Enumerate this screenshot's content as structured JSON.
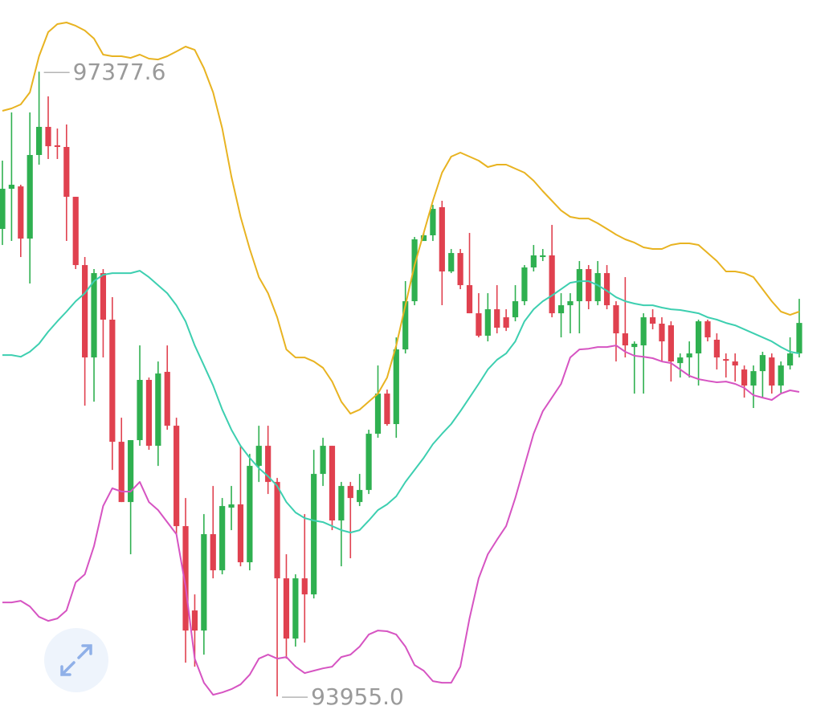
{
  "chart_data": {
    "type": "candlestick",
    "ylim": [
      93815,
      97770
    ],
    "up_color": "#2fb050",
    "down_color": "#e0414f",
    "open": [
      96516,
      96736,
      96749,
      96463,
      96921,
      97075,
      96974,
      96965,
      96692,
      96318,
      95812,
      96274,
      96019,
      95350,
      95020,
      95359,
      95689,
      95328,
      95733,
      95438,
      94888,
      94426,
      94316,
      94844,
      94646,
      94989,
      95007,
      94690,
      95218,
      95328,
      95130,
      94602,
      94272,
      94602,
      94514,
      95174,
      95328,
      94919,
      95108,
      95020,
      95086,
      95394,
      95614,
      95447,
      95856,
      96120,
      96450,
      96481,
      96635,
      96283,
      96384,
      96208,
      96054,
      95931,
      96076,
      96032,
      96032,
      96120,
      96305,
      96362,
      96371,
      96054,
      96098,
      96120,
      96296,
      96120,
      96274,
      96098,
      95944,
      95869,
      95878,
      96032,
      95997,
      95988,
      95781,
      95812,
      95834,
      96010,
      95909,
      95803,
      95790,
      95746,
      95658,
      95737,
      95812,
      95658,
      95768,
      95834
    ],
    "high": [
      96890,
      97154,
      96758,
      97154,
      97377.6,
      97242,
      97066,
      97088,
      96692,
      96362,
      96296,
      96296,
      96142,
      95482,
      95359,
      95878,
      95702,
      95790,
      95878,
      95482,
      95042,
      94514,
      94954,
      95108,
      95042,
      95108,
      95328,
      95284,
      95438,
      95438,
      95152,
      94734,
      94624,
      94954,
      95306,
      95372,
      95328,
      95130,
      95130,
      95174,
      95416,
      95768,
      95636,
      95922,
      96230,
      96472,
      96494,
      96648,
      96670,
      96406,
      96406,
      96494,
      96164,
      96164,
      96208,
      96076,
      96208,
      96318,
      96428,
      96406,
      96538,
      96164,
      96164,
      96340,
      96318,
      96340,
      96318,
      96120,
      96252,
      95900,
      96054,
      96076,
      96032,
      96010,
      95834,
      95900,
      96019,
      96019,
      95944,
      95834,
      95834,
      95768,
      95768,
      95843,
      95834,
      95790,
      95922,
      96133
    ],
    "low": [
      96428,
      96450,
      96362,
      96217,
      96868,
      96899,
      96899,
      96450,
      96296,
      95548,
      95570,
      95812,
      95196,
      95020,
      94734,
      95328,
      95306,
      95218,
      95416,
      94844,
      94140,
      94118,
      94184,
      94602,
      94624,
      94866,
      94668,
      94646,
      95130,
      95064,
      93955.0,
      94162,
      94228,
      94250,
      94492,
      95108,
      94866,
      94668,
      94712,
      94998,
      95064,
      95372,
      95438,
      95372,
      95834,
      96098,
      96450,
      96450,
      96098,
      96274,
      96186,
      96054,
      95922,
      95900,
      95944,
      95957,
      96010,
      96098,
      96283,
      96340,
      96032,
      95922,
      95944,
      95944,
      96076,
      96098,
      96076,
      95790,
      95812,
      95614,
      95614,
      95966,
      95790,
      95680,
      95702,
      95702,
      95658,
      95900,
      95746,
      95702,
      95680,
      95592,
      95535,
      95592,
      95614,
      95614,
      95746,
      95812
    ],
    "close": [
      96736,
      96758,
      96463,
      96921,
      97075,
      96969,
      96965,
      96692,
      96318,
      95812,
      96274,
      96019,
      95350,
      95020,
      95359,
      95689,
      95328,
      95724,
      95438,
      94888,
      94316,
      94316,
      94844,
      94646,
      94998,
      95007,
      94690,
      95218,
      95328,
      95130,
      94602,
      94272,
      94602,
      94514,
      95174,
      95328,
      94919,
      95108,
      95042,
      95086,
      95394,
      95614,
      95447,
      95856,
      96120,
      96459,
      96481,
      96626,
      96283,
      96384,
      96208,
      96054,
      95931,
      96076,
      95975,
      95975,
      96120,
      96305,
      96371,
      96371,
      96054,
      96098,
      96120,
      96296,
      96120,
      96274,
      96098,
      95944,
      95878,
      95887,
      96032,
      95997,
      95900,
      95790,
      95812,
      95834,
      96010,
      95922,
      95812,
      95794,
      95768,
      95658,
      95737,
      95825,
      95658,
      95768,
      95834,
      96001
    ],
    "lines": [
      {
        "color": "#e8b321",
        "values": [
          97163,
          97176,
          97198,
          97264,
          97462,
          97594,
          97638,
          97647,
          97629,
          97603,
          97559,
          97471,
          97462,
          97462,
          97453,
          97471,
          97449,
          97444,
          97462,
          97488,
          97515,
          97497,
          97396,
          97264,
          97066,
          96802,
          96582,
          96406,
          96252,
          96164,
          96032,
          95856,
          95812,
          95812,
          95790,
          95755,
          95680,
          95570,
          95504,
          95526,
          95570,
          95614,
          95702,
          95878,
          96098,
          96318,
          96494,
          96670,
          96824,
          96912,
          96934,
          96912,
          96890,
          96855,
          96868,
          96868,
          96846,
          96824,
          96780,
          96723,
          96670,
          96617,
          96582,
          96573,
          96573,
          96547,
          96516,
          96485,
          96459,
          96441,
          96415,
          96406,
          96406,
          96428,
          96437,
          96437,
          96428,
          96384,
          96340,
          96283,
          96283,
          96274,
          96252,
          96186,
          96120,
          96063,
          96045,
          96063
        ]
      },
      {
        "color": "#3dcfb0",
        "values": [
          95825,
          95825,
          95816,
          95843,
          95887,
          95953,
          96010,
          96063,
          96120,
          96164,
          96230,
          96265,
          96274,
          96274,
          96274,
          96287,
          96252,
          96208,
          96164,
          96098,
          96010,
          95878,
          95768,
          95658,
          95526,
          95416,
          95328,
          95262,
          95205,
          95161,
          95108,
          95020,
          94963,
          94932,
          94919,
          94910,
          94888,
          94866,
          94853,
          94866,
          94919,
          94976,
          95007,
          95051,
          95130,
          95196,
          95262,
          95337,
          95394,
          95447,
          95517,
          95592,
          95667,
          95746,
          95799,
          95834,
          95900,
          96010,
          96076,
          96120,
          96151,
          96186,
          96221,
          96230,
          96230,
          96208,
          96177,
          96142,
          96120,
          96107,
          96098,
          96098,
          96085,
          96076,
          96072,
          96063,
          96054,
          96032,
          96019,
          96001,
          95988,
          95966,
          95944,
          95922,
          95900,
          95869,
          95843,
          95834
        ]
      },
      {
        "color": "#d654c2",
        "values": [
          94470,
          94470,
          94479,
          94448,
          94391,
          94369,
          94382,
          94426,
          94580,
          94624,
          94778,
          94998,
          95095,
          95077,
          95077,
          95130,
          95020,
          94976,
          94910,
          94844,
          94558,
          94162,
          94030,
          93964,
          93977,
          93995,
          94021,
          94074,
          94162,
          94184,
          94162,
          94171,
          94118,
          94083,
          94096,
          94109,
          94118,
          94171,
          94184,
          94228,
          94294,
          94316,
          94312,
          94294,
          94228,
          94127,
          94096,
          94039,
          94030,
          94030,
          94118,
          94382,
          94602,
          94734,
          94813,
          94888,
          95042,
          95218,
          95394,
          95517,
          95592,
          95667,
          95812,
          95856,
          95860,
          95869,
          95869,
          95878,
          95843,
          95821,
          95816,
          95808,
          95790,
          95781,
          95746,
          95711,
          95693,
          95684,
          95676,
          95680,
          95667,
          95645,
          95605,
          95592,
          95579,
          95614,
          95632,
          95623
        ]
      }
    ],
    "annotations": [
      "97377.6",
      "93955.0"
    ]
  }
}
